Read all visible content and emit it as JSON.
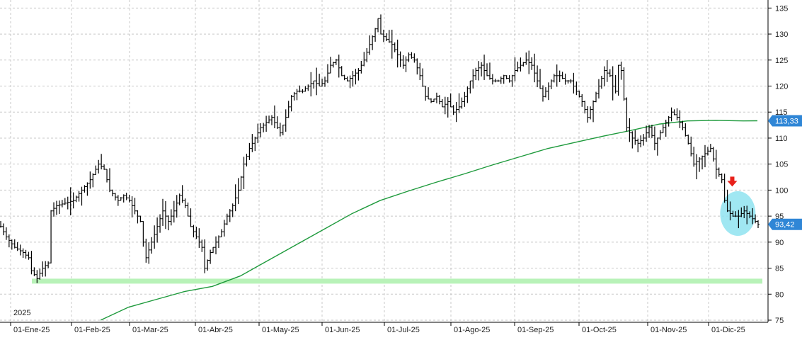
{
  "chart_data": {
    "type": "ohlc",
    "year_label": "2025",
    "ylim": [
      75,
      136
    ],
    "y_ticks": [
      75,
      80,
      85,
      90,
      95,
      100,
      105,
      110,
      115,
      120,
      125,
      130,
      135
    ],
    "x_tick_labels": [
      "01-Ene-25",
      "01-Feb-25",
      "01-Mar-25",
      "01-Abr-25",
      "01-May-25",
      "01-Jun-25",
      "01-Jul-25",
      "01-Ago-25",
      "01-Sep-25",
      "01-Oct-25",
      "01-Nov-25",
      "01-Dic-25"
    ],
    "last_price_label": "93,42",
    "last_price": 93.42,
    "ma_label": "113,33",
    "ma_value": 113.33,
    "support_level": 82.5,
    "colors": {
      "bars": "#000000",
      "moving_average": "#1e9a3c",
      "support": "#b8f2b8",
      "price_tag": "#2f86d6",
      "arrow": "#e8201a",
      "highlight": "#8fe3f0",
      "grid": "#c8c8c8"
    },
    "price_path": [
      {
        "x": 0,
        "y": 93
      },
      {
        "x": 2,
        "y": 91
      },
      {
        "x": 5,
        "y": 89
      },
      {
        "x": 8,
        "y": 88
      },
      {
        "x": 10,
        "y": 87
      },
      {
        "x": 11,
        "y": 84.5
      },
      {
        "x": 13,
        "y": 83
      },
      {
        "x": 15,
        "y": 85
      },
      {
        "x": 17,
        "y": 86
      },
      {
        "x": 18,
        "y": 96
      },
      {
        "x": 20,
        "y": 97
      },
      {
        "x": 23,
        "y": 97.5
      },
      {
        "x": 26,
        "y": 98
      },
      {
        "x": 29,
        "y": 100
      },
      {
        "x": 32,
        "y": 102
      },
      {
        "x": 35,
        "y": 105
      },
      {
        "x": 37,
        "y": 104
      },
      {
        "x": 39,
        "y": 100
      },
      {
        "x": 42,
        "y": 98
      },
      {
        "x": 44,
        "y": 99
      },
      {
        "x": 46,
        "y": 98
      },
      {
        "x": 48,
        "y": 96
      },
      {
        "x": 50,
        "y": 94
      },
      {
        "x": 51,
        "y": 90
      },
      {
        "x": 52,
        "y": 87
      },
      {
        "x": 54,
        "y": 90
      },
      {
        "x": 56,
        "y": 93
      },
      {
        "x": 58,
        "y": 96
      },
      {
        "x": 60,
        "y": 94
      },
      {
        "x": 62,
        "y": 96
      },
      {
        "x": 64,
        "y": 99
      },
      {
        "x": 66,
        "y": 97
      },
      {
        "x": 68,
        "y": 93
      },
      {
        "x": 70,
        "y": 91
      },
      {
        "x": 72,
        "y": 89
      },
      {
        "x": 73,
        "y": 85
      },
      {
        "x": 75,
        "y": 88
      },
      {
        "x": 77,
        "y": 90
      },
      {
        "x": 79,
        "y": 92
      },
      {
        "x": 81,
        "y": 95
      },
      {
        "x": 83,
        "y": 97
      },
      {
        "x": 85,
        "y": 100
      },
      {
        "x": 87,
        "y": 105
      },
      {
        "x": 89,
        "y": 108
      },
      {
        "x": 91,
        "y": 110
      },
      {
        "x": 93,
        "y": 112
      },
      {
        "x": 95,
        "y": 113
      },
      {
        "x": 97,
        "y": 114
      },
      {
        "x": 99,
        "y": 112
      },
      {
        "x": 100,
        "y": 111
      },
      {
        "x": 102,
        "y": 114
      },
      {
        "x": 104,
        "y": 118
      },
      {
        "x": 106,
        "y": 119
      },
      {
        "x": 108,
        "y": 119
      },
      {
        "x": 110,
        "y": 120
      },
      {
        "x": 112,
        "y": 121
      },
      {
        "x": 114,
        "y": 120
      },
      {
        "x": 116,
        "y": 121
      },
      {
        "x": 118,
        "y": 124
      },
      {
        "x": 120,
        "y": 125
      },
      {
        "x": 122,
        "y": 122
      },
      {
        "x": 124,
        "y": 121
      },
      {
        "x": 126,
        "y": 122
      },
      {
        "x": 128,
        "y": 123
      },
      {
        "x": 130,
        "y": 125
      },
      {
        "x": 132,
        "y": 128
      },
      {
        "x": 134,
        "y": 131
      },
      {
        "x": 135,
        "y": 133
      },
      {
        "x": 136,
        "y": 130
      },
      {
        "x": 138,
        "y": 129
      },
      {
        "x": 140,
        "y": 128
      },
      {
        "x": 142,
        "y": 126
      },
      {
        "x": 144,
        "y": 124
      },
      {
        "x": 146,
        "y": 126
      },
      {
        "x": 148,
        "y": 125
      },
      {
        "x": 150,
        "y": 122
      },
      {
        "x": 152,
        "y": 118
      },
      {
        "x": 154,
        "y": 117
      },
      {
        "x": 156,
        "y": 118
      },
      {
        "x": 158,
        "y": 116
      },
      {
        "x": 160,
        "y": 117
      },
      {
        "x": 162,
        "y": 115
      },
      {
        "x": 164,
        "y": 116
      },
      {
        "x": 166,
        "y": 118
      },
      {
        "x": 168,
        "y": 121
      },
      {
        "x": 170,
        "y": 123
      },
      {
        "x": 172,
        "y": 124
      },
      {
        "x": 174,
        "y": 122
      },
      {
        "x": 176,
        "y": 121
      },
      {
        "x": 178,
        "y": 121
      },
      {
        "x": 180,
        "y": 122
      },
      {
        "x": 182,
        "y": 121
      },
      {
        "x": 184,
        "y": 123
      },
      {
        "x": 186,
        "y": 124
      },
      {
        "x": 188,
        "y": 125
      },
      {
        "x": 190,
        "y": 124
      },
      {
        "x": 192,
        "y": 121
      },
      {
        "x": 194,
        "y": 118
      },
      {
        "x": 196,
        "y": 120
      },
      {
        "x": 198,
        "y": 122
      },
      {
        "x": 200,
        "y": 122
      },
      {
        "x": 202,
        "y": 121
      },
      {
        "x": 204,
        "y": 121
      },
      {
        "x": 206,
        "y": 119
      },
      {
        "x": 208,
        "y": 117
      },
      {
        "x": 210,
        "y": 114
      },
      {
        "x": 212,
        "y": 117
      },
      {
        "x": 214,
        "y": 120
      },
      {
        "x": 216,
        "y": 123
      },
      {
        "x": 218,
        "y": 122
      },
      {
        "x": 219,
        "y": 120
      },
      {
        "x": 220,
        "y": 119
      },
      {
        "x": 221,
        "y": 124
      },
      {
        "x": 222,
        "y": 123
      },
      {
        "x": 224,
        "y": 112
      },
      {
        "x": 226,
        "y": 110
      },
      {
        "x": 228,
        "y": 109
      },
      {
        "x": 230,
        "y": 110
      },
      {
        "x": 232,
        "y": 112
      },
      {
        "x": 234,
        "y": 109
      },
      {
        "x": 236,
        "y": 111
      },
      {
        "x": 238,
        "y": 113
      },
      {
        "x": 240,
        "y": 115
      },
      {
        "x": 242,
        "y": 114
      },
      {
        "x": 244,
        "y": 112
      },
      {
        "x": 246,
        "y": 109
      },
      {
        "x": 248,
        "y": 105
      },
      {
        "x": 250,
        "y": 106
      },
      {
        "x": 252,
        "y": 107
      },
      {
        "x": 254,
        "y": 108
      },
      {
        "x": 256,
        "y": 104
      },
      {
        "x": 258,
        "y": 102
      },
      {
        "x": 259,
        "y": 98
      },
      {
        "x": 260,
        "y": 96
      },
      {
        "x": 262,
        "y": 95
      },
      {
        "x": 264,
        "y": 95
      },
      {
        "x": 266,
        "y": 96
      },
      {
        "x": 268,
        "y": 95
      },
      {
        "x": 270,
        "y": 94
      },
      {
        "x": 271,
        "y": 93.42
      }
    ],
    "moving_average": [
      {
        "x": 36,
        "y": 75
      },
      {
        "x": 46,
        "y": 77.5
      },
      {
        "x": 56,
        "y": 79
      },
      {
        "x": 66,
        "y": 80.5
      },
      {
        "x": 76,
        "y": 81.5
      },
      {
        "x": 86,
        "y": 83.5
      },
      {
        "x": 96,
        "y": 86.5
      },
      {
        "x": 106,
        "y": 89.5
      },
      {
        "x": 116,
        "y": 92.5
      },
      {
        "x": 126,
        "y": 95.5
      },
      {
        "x": 136,
        "y": 98
      },
      {
        "x": 146,
        "y": 99.8
      },
      {
        "x": 156,
        "y": 101.5
      },
      {
        "x": 166,
        "y": 103.1
      },
      {
        "x": 176,
        "y": 104.8
      },
      {
        "x": 186,
        "y": 106.4
      },
      {
        "x": 196,
        "y": 108
      },
      {
        "x": 206,
        "y": 109.2
      },
      {
        "x": 216,
        "y": 110.4
      },
      {
        "x": 226,
        "y": 111.5
      },
      {
        "x": 236,
        "y": 112.7
      },
      {
        "x": 246,
        "y": 113.3
      },
      {
        "x": 256,
        "y": 113.4
      },
      {
        "x": 266,
        "y": 113.3
      },
      {
        "x": 271,
        "y": 113.33
      }
    ],
    "annotations": {
      "arrow": {
        "x": 262,
        "y": 101.5
      },
      "highlight_ellipse": {
        "x": 264,
        "y": 95.5,
        "rx_days": 7,
        "ry_value": 4.3
      }
    }
  }
}
